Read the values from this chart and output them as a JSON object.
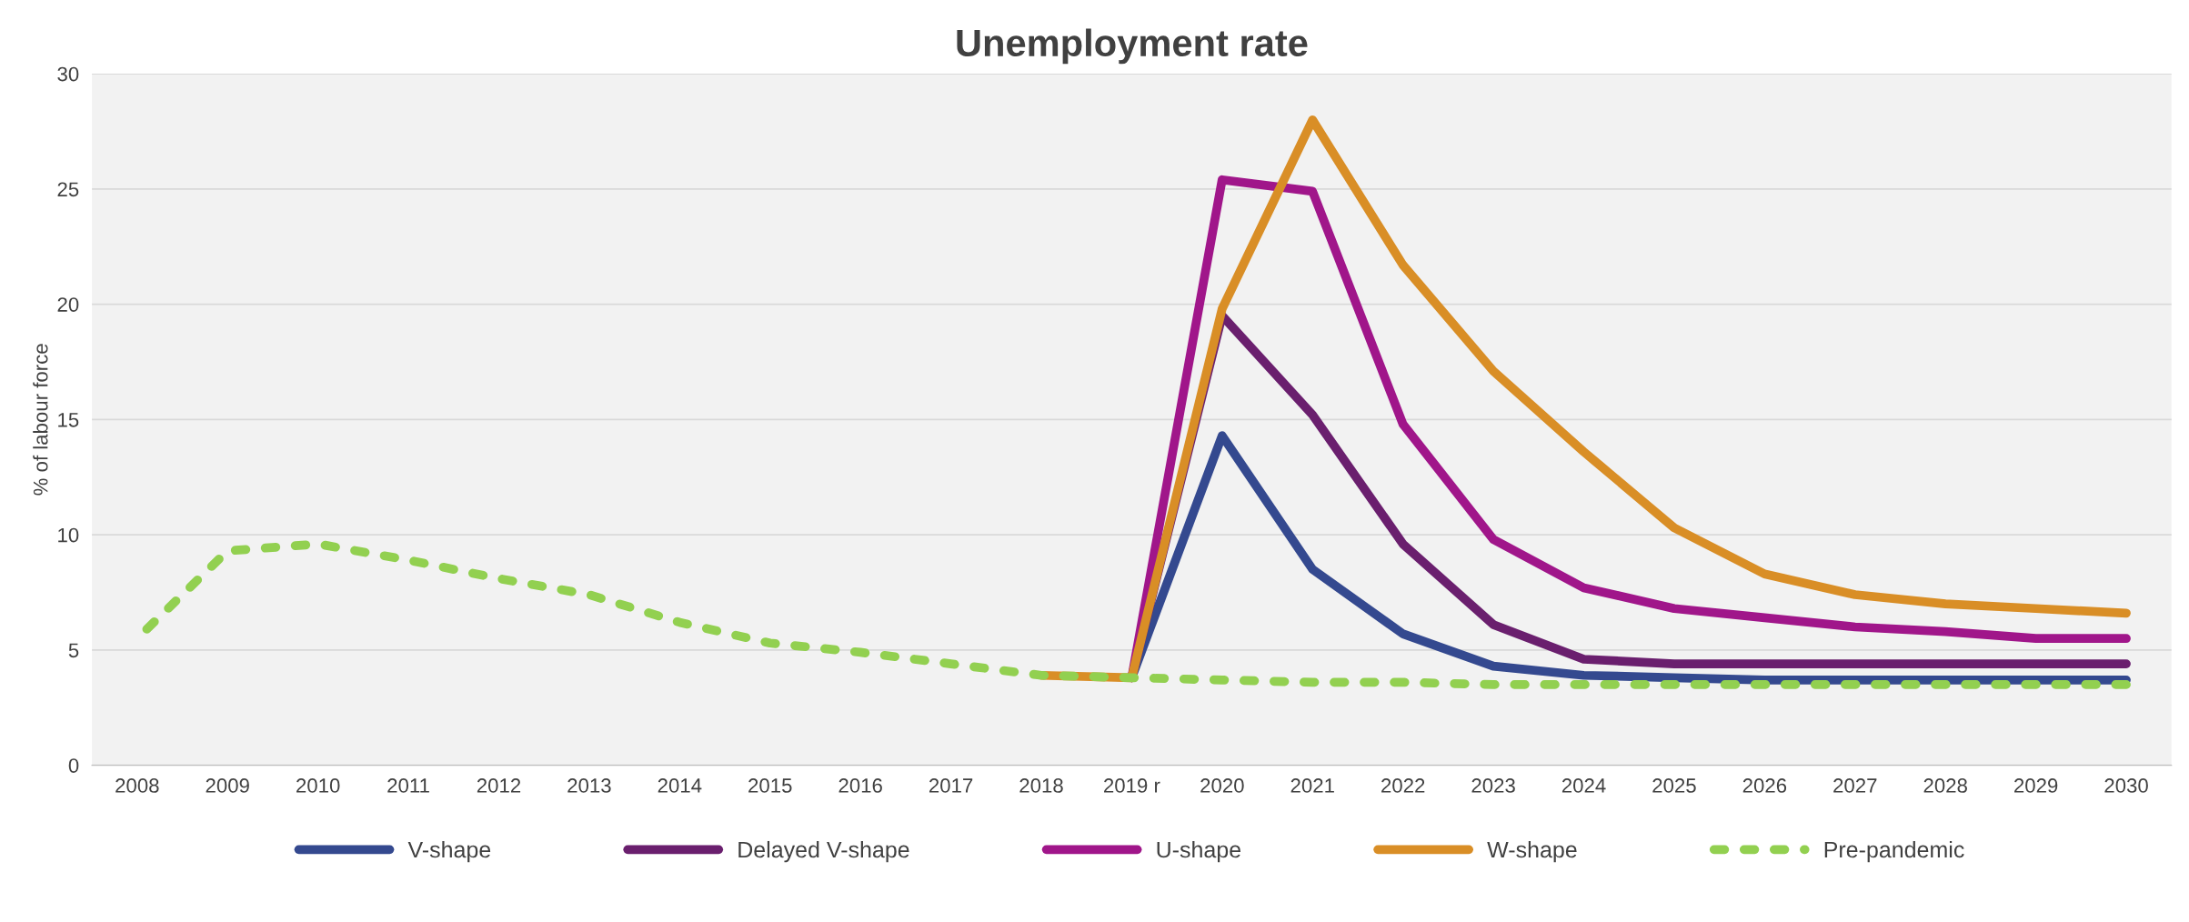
{
  "chart_data": {
    "type": "line",
    "title": "Unemployment rate",
    "ylabel": "% of labour force",
    "categories": [
      "2008",
      "2009",
      "2010",
      "2011",
      "2012",
      "2013",
      "2014",
      "2015",
      "2016",
      "2017",
      "2018",
      "2019 r",
      "2020",
      "2021",
      "2022",
      "2023",
      "2024",
      "2025",
      "2026",
      "2027",
      "2028",
      "2029",
      "2030"
    ],
    "series": [
      {
        "name": "V-shape",
        "color": "#34498f",
        "line_style": "solid",
        "values": [
          null,
          null,
          null,
          null,
          null,
          null,
          null,
          null,
          null,
          null,
          null,
          3.8,
          14.3,
          8.5,
          5.7,
          4.3,
          3.9,
          3.8,
          3.7,
          3.7,
          3.7,
          3.7,
          3.7
        ]
      },
      {
        "name": "Delayed V-shape",
        "color": "#6a1f6e",
        "line_style": "solid",
        "values": [
          null,
          null,
          null,
          null,
          null,
          null,
          null,
          null,
          null,
          null,
          null,
          3.8,
          19.5,
          15.2,
          9.6,
          6.1,
          4.6,
          4.4,
          4.4,
          4.4,
          4.4,
          4.4,
          4.4
        ]
      },
      {
        "name": "U-shape",
        "color": "#a0168a",
        "line_style": "solid",
        "values": [
          null,
          null,
          null,
          null,
          null,
          null,
          null,
          null,
          null,
          null,
          null,
          3.8,
          25.4,
          24.9,
          14.8,
          9.8,
          7.7,
          6.8,
          6.4,
          6.0,
          5.8,
          5.5,
          5.5
        ]
      },
      {
        "name": "W-shape",
        "color": "#d98e26",
        "line_style": "solid",
        "values": [
          null,
          null,
          null,
          null,
          null,
          null,
          null,
          null,
          null,
          null,
          3.9,
          3.8,
          19.8,
          28.0,
          21.7,
          17.1,
          13.6,
          10.3,
          8.3,
          7.4,
          7.0,
          6.8,
          6.6
        ]
      },
      {
        "name": "Pre-pandemic",
        "color": "#92d050",
        "line_style": "dashed",
        "values": [
          5.5,
          9.3,
          9.6,
          8.9,
          8.1,
          7.4,
          6.2,
          5.3,
          4.9,
          4.4,
          3.9,
          3.8,
          3.7,
          3.6,
          3.6,
          3.5,
          3.5,
          3.5,
          3.5,
          3.5,
          3.5,
          3.5,
          3.5
        ]
      }
    ],
    "ylim": [
      0,
      30
    ],
    "yticks": [
      0,
      5,
      10,
      15,
      20,
      25,
      30
    ],
    "grid": "y",
    "legend": "bottom",
    "marker": "none"
  }
}
